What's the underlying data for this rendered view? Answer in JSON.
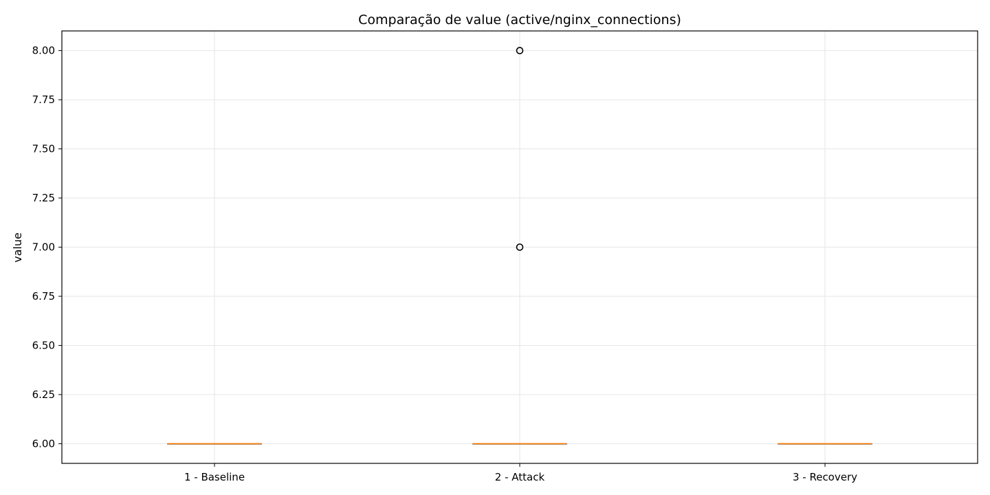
{
  "chart_data": {
    "type": "box",
    "title": "Comparação de value (active/nginx_connections)",
    "xlabel": "",
    "ylabel": "value",
    "ylim": [
      5.9,
      8.1
    ],
    "yticks": [
      6.0,
      6.25,
      6.5,
      6.75,
      7.0,
      7.25,
      7.5,
      7.75,
      8.0
    ],
    "ytick_labels": [
      "6.00",
      "6.25",
      "6.50",
      "6.75",
      "7.00",
      "7.25",
      "7.50",
      "7.75",
      "8.00"
    ],
    "grid": true,
    "categories": [
      "1 - Baseline",
      "2 - Attack",
      "3 - Recovery"
    ],
    "boxes": [
      {
        "label": "1 - Baseline",
        "min": 6.0,
        "q1": 6.0,
        "median": 6.0,
        "q3": 6.0,
        "max": 6.0,
        "outliers": []
      },
      {
        "label": "2 - Attack",
        "min": 6.0,
        "q1": 6.0,
        "median": 6.0,
        "q3": 6.0,
        "max": 6.0,
        "outliers": [
          7.0,
          8.0
        ]
      },
      {
        "label": "3 - Recovery",
        "min": 6.0,
        "q1": 6.0,
        "median": 6.0,
        "q3": 6.0,
        "max": 6.0,
        "outliers": []
      }
    ],
    "colors": {
      "median": "#ff7f0e",
      "box": "#000000",
      "grid": "#e6e6e6"
    }
  }
}
